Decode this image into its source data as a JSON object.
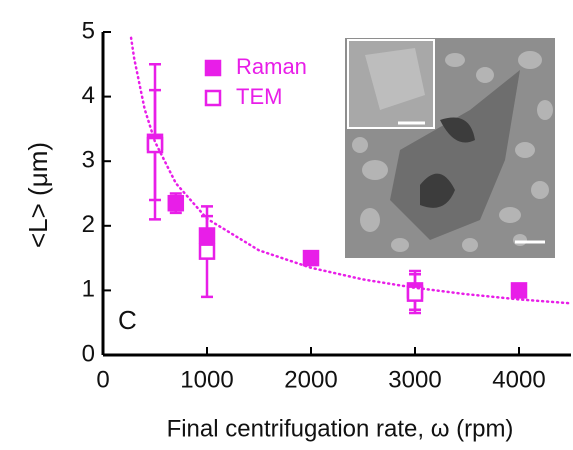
{
  "chart_data": {
    "type": "scatter",
    "panel_label": "C",
    "x_label": "Final centrifugation rate, ω (rpm)",
    "y_label": "<L> (μm)",
    "xlim": [
      0,
      4500
    ],
    "xticks": [
      0,
      1000,
      2000,
      3000,
      4000
    ],
    "ylim": [
      0,
      5
    ],
    "yticks": [
      0,
      1,
      2,
      3,
      4,
      5
    ],
    "series": [
      {
        "name": "Raman",
        "color": "#e81ee8",
        "marker": "filled-square",
        "x": [
          500,
          700,
          1000,
          2000,
          3000,
          4000
        ],
        "values": [
          3.3,
          2.35,
          1.85,
          1.5,
          1.0,
          1.0
        ],
        "errors": [
          1.2,
          0.15,
          0.3,
          0.1,
          0.3,
          0.05
        ]
      },
      {
        "name": "TEM",
        "color": "#e81ee8",
        "marker": "open-square",
        "x": [
          500,
          1000,
          3000
        ],
        "values": [
          3.25,
          1.6,
          0.95
        ],
        "errors": [
          0.85,
          0.7,
          0.3
        ]
      },
      {
        "color": "#e81ee8",
        "style": "dotted",
        "x": [
          270,
          300,
          400,
          500,
          700,
          1000,
          1500,
          2000,
          2500,
          3000,
          3500,
          4000,
          4500
        ],
        "values": [
          4.91,
          4.59,
          3.81,
          3.3,
          2.66,
          2.11,
          1.62,
          1.35,
          1.17,
          1.04,
          0.94,
          0.86,
          0.8
        ]
      }
    ]
  }
}
